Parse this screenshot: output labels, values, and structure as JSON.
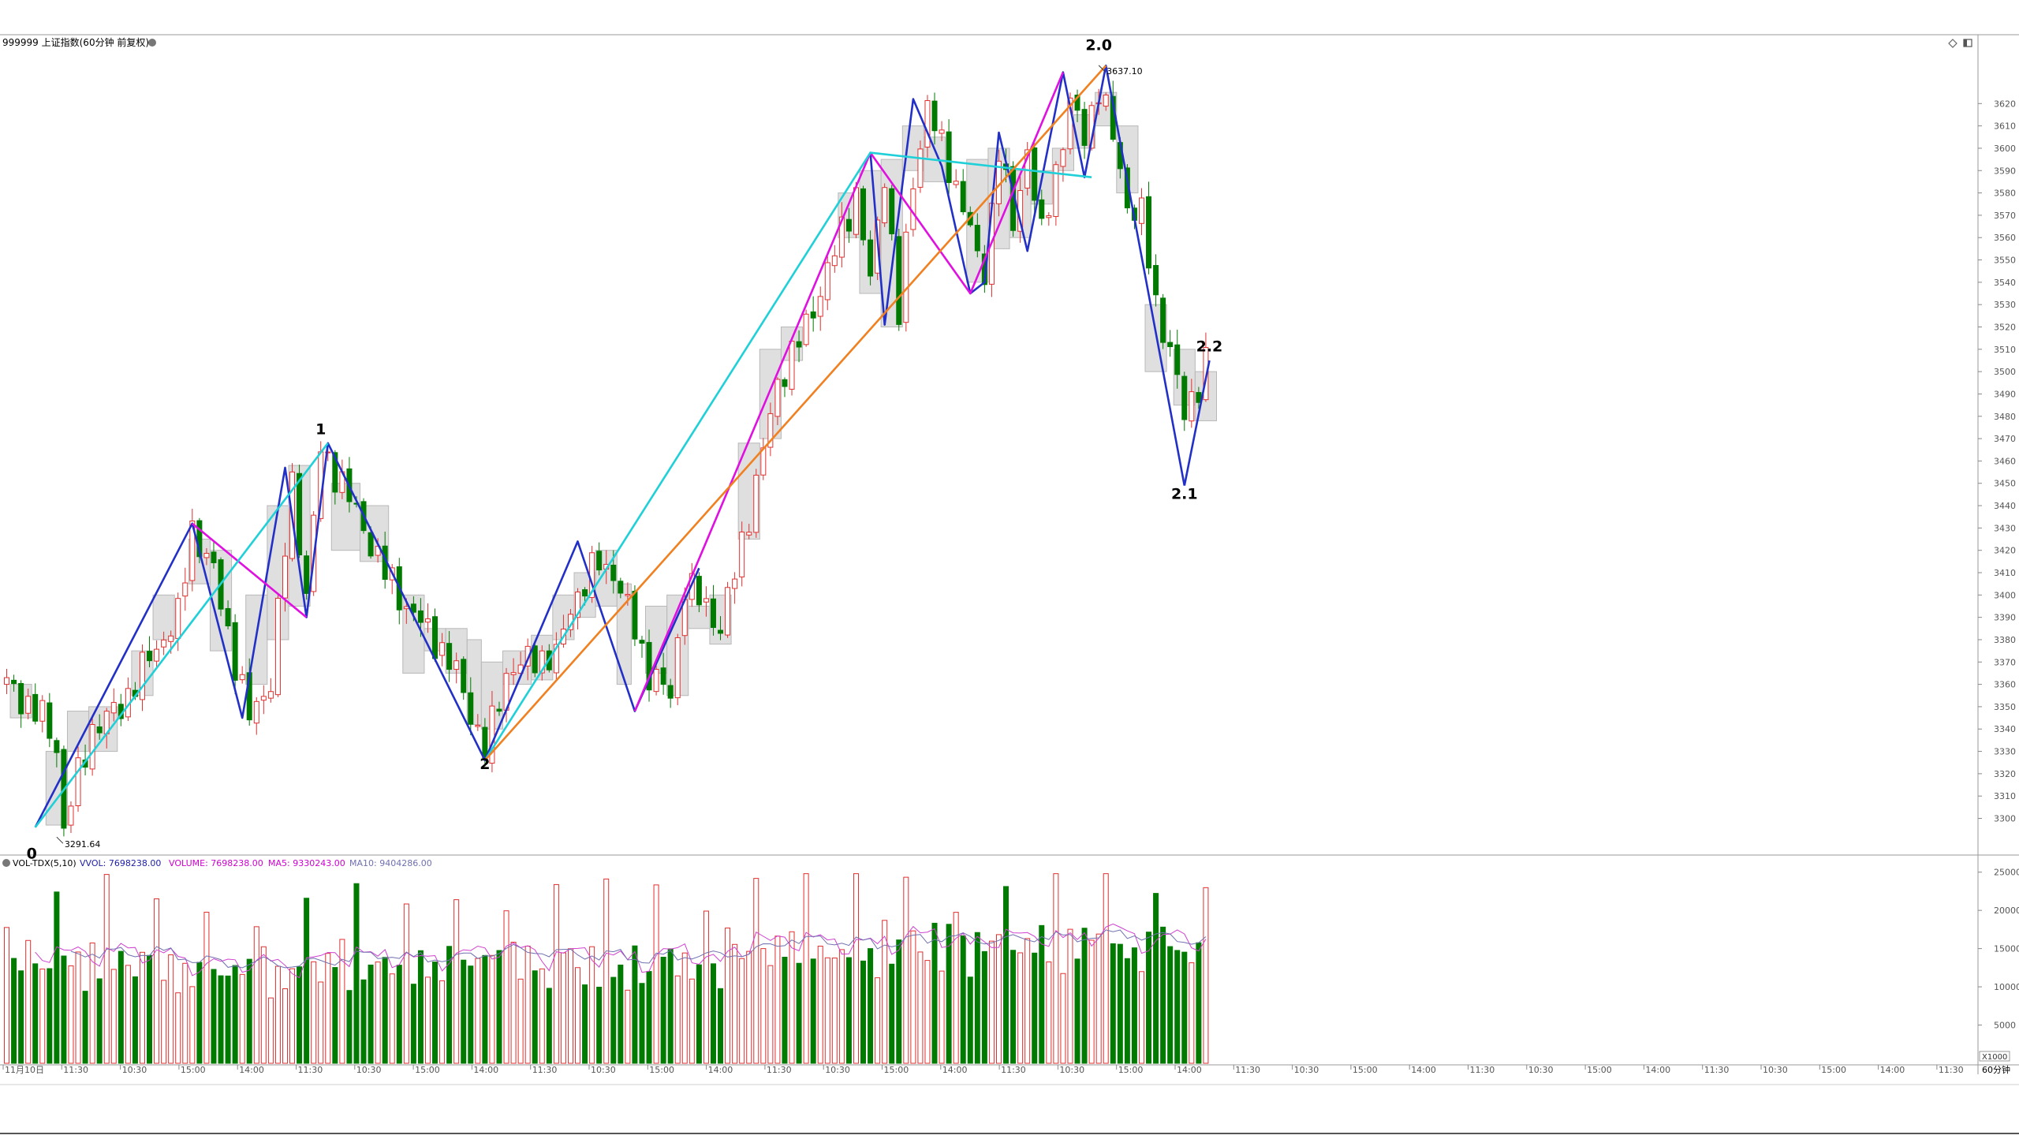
{
  "header": {
    "symbol_title": "999999 上证指数(60分钟 前复权)",
    "icons": [
      "diamond-icon",
      "window-icon"
    ]
  },
  "price_panel": {
    "low_label": "3291.64",
    "high_label": "3637.10",
    "y_ticks": [
      3300,
      3310,
      3320,
      3330,
      3340,
      3350,
      3360,
      3370,
      3380,
      3390,
      3400,
      3410,
      3420,
      3430,
      3440,
      3450,
      3460,
      3470,
      3480,
      3490,
      3500,
      3510,
      3520,
      3530,
      3540,
      3550,
      3560,
      3570,
      3580,
      3590,
      3600,
      3610,
      3620
    ],
    "wave_labels": [
      {
        "text": "0",
        "bar": 3.5,
        "price": 3282
      },
      {
        "text": "1",
        "bar": 44,
        "price": 3472
      },
      {
        "text": "2",
        "bar": 67,
        "price": 3322
      },
      {
        "text": "2.0",
        "bar": 153,
        "price": 3644
      },
      {
        "text": "2.1",
        "bar": 165,
        "price": 3443
      },
      {
        "text": "2.2",
        "bar": 168.5,
        "price": 3509
      }
    ]
  },
  "volume_panel": {
    "legend": {
      "name": "VOL-TDX(5,10)",
      "vvol": "VVOL: 7698238.00",
      "volume": "VOLUME: 7698238.00",
      "ma5": "MA5: 9330243.00",
      "ma10": "MA10: 9404286.00"
    },
    "y_ticks": [
      5000,
      10000,
      15000,
      20000,
      25000
    ],
    "unit_label": "X1000"
  },
  "x_axis": {
    "labels": [
      "11月10日",
      "11:30",
      "10:30",
      "15:00",
      "14:00",
      "11:30",
      "10:30",
      "15:00",
      "14:00",
      "11:30",
      "10:30",
      "15:00",
      "14:00",
      "11:30",
      "10:30",
      "15:00",
      "14:00",
      "11:30",
      "10:30",
      "15:00",
      "14:00",
      "11:30",
      "10:30",
      "15:00",
      "14:00",
      "11:30",
      "10:30",
      "15:00",
      "14:00",
      "11:30",
      "10:30",
      "15:00",
      "14:00",
      "11:30"
    ],
    "period_label": "60分钟"
  },
  "colors": {
    "up": "#e0302f",
    "down": "#007a00",
    "wave_blue": "#2230c8",
    "wave_magenta": "#e010e0",
    "wave_cyan": "#20d0d8",
    "wave_orange": "#f08020",
    "box_fill": "#d9d9d9",
    "box_stroke": "#b8b8b8",
    "ma5": "#d040d0",
    "ma10": "#7070b0",
    "vvol": "#1d1da8",
    "grid_text": "#555555"
  },
  "chart_data": {
    "type": "candlestick",
    "title": "999999 上证指数(60分钟 前复权)",
    "ylim": [
      3285,
      3648
    ],
    "low_marker": 3291.64,
    "high_marker": 3637.1,
    "anchors": [
      [
        0,
        3360
      ],
      [
        5,
        3345
      ],
      [
        7,
        3332
      ],
      [
        8,
        3295
      ],
      [
        9,
        3308
      ],
      [
        12,
        3340
      ],
      [
        16,
        3350
      ],
      [
        20,
        3372
      ],
      [
        24,
        3390
      ],
      [
        26,
        3430
      ],
      [
        29,
        3410
      ],
      [
        32,
        3370
      ],
      [
        34,
        3345
      ],
      [
        37,
        3362
      ],
      [
        40,
        3450
      ],
      [
        42,
        3400
      ],
      [
        44,
        3465
      ],
      [
        47,
        3450
      ],
      [
        50,
        3430
      ],
      [
        53,
        3410
      ],
      [
        56,
        3395
      ],
      [
        60,
        3380
      ],
      [
        63,
        3365
      ],
      [
        67,
        3330
      ],
      [
        70,
        3365
      ],
      [
        74,
        3372
      ],
      [
        77,
        3372
      ],
      [
        79,
        3395
      ],
      [
        83,
        3415
      ],
      [
        85,
        3410
      ],
      [
        88,
        3385
      ],
      [
        90,
        3365
      ],
      [
        93,
        3355
      ],
      [
        95,
        3405
      ],
      [
        98,
        3395
      ],
      [
        100,
        3385
      ],
      [
        102,
        3410
      ],
      [
        105,
        3450
      ],
      [
        108,
        3495
      ],
      [
        112,
        3520
      ],
      [
        115,
        3545
      ],
      [
        119,
        3580
      ],
      [
        121,
        3540
      ],
      [
        123,
        3590
      ],
      [
        125,
        3525
      ],
      [
        127,
        3585
      ],
      [
        129,
        3620
      ],
      [
        131,
        3600
      ],
      [
        134,
        3575
      ],
      [
        136,
        3550
      ],
      [
        137,
        3545
      ],
      [
        139,
        3600
      ],
      [
        141,
        3565
      ],
      [
        143,
        3600
      ],
      [
        145,
        3560
      ],
      [
        147,
        3590
      ],
      [
        149,
        3620
      ],
      [
        151,
        3605
      ],
      [
        153,
        3628
      ],
      [
        155,
        3605
      ],
      [
        157,
        3575
      ],
      [
        159,
        3570
      ],
      [
        161,
        3530
      ],
      [
        163,
        3510
      ],
      [
        165,
        3480
      ],
      [
        167,
        3495
      ],
      [
        168,
        3505
      ]
    ],
    "bar_count": 169,
    "volume_ylim": [
      0,
      26000
    ],
    "volume_avg": 9404286,
    "boxes": [
      [
        1,
        4,
        3345,
        3360
      ],
      [
        6,
        9,
        3297,
        3330
      ],
      [
        9,
        12,
        3330,
        3348
      ],
      [
        12,
        16,
        3330,
        3350
      ],
      [
        18,
        21,
        3355,
        3375
      ],
      [
        21,
        24,
        3380,
        3400
      ],
      [
        26,
        29,
        3405,
        3425
      ],
      [
        29,
        32,
        3375,
        3420
      ],
      [
        34,
        37,
        3360,
        3400
      ],
      [
        37,
        40,
        3380,
        3440
      ],
      [
        40,
        43,
        3395,
        3458
      ],
      [
        46,
        50,
        3420,
        3450
      ],
      [
        50,
        54,
        3415,
        3440
      ],
      [
        56,
        59,
        3365,
        3400
      ],
      [
        59,
        62,
        3375,
        3385
      ],
      [
        62,
        65,
        3365,
        3385
      ],
      [
        65,
        67,
        3342,
        3380
      ],
      [
        67,
        70,
        3340,
        3370
      ],
      [
        70,
        74,
        3360,
        3375
      ],
      [
        74,
        77,
        3362,
        3382
      ],
      [
        77,
        80,
        3380,
        3400
      ],
      [
        80,
        83,
        3390,
        3410
      ],
      [
        83,
        86,
        3395,
        3420
      ],
      [
        86,
        88,
        3360,
        3405
      ],
      [
        90,
        93,
        3365,
        3395
      ],
      [
        93,
        96,
        3355,
        3400
      ],
      [
        96,
        99,
        3385,
        3395
      ],
      [
        99,
        102,
        3378,
        3400
      ],
      [
        103,
        106,
        3425,
        3468
      ],
      [
        106,
        109,
        3470,
        3510
      ],
      [
        109,
        112,
        3505,
        3520
      ],
      [
        117,
        120,
        3560,
        3580
      ],
      [
        120,
        123,
        3535,
        3590
      ],
      [
        123,
        126,
        3520,
        3595
      ],
      [
        126,
        129,
        3590,
        3610
      ],
      [
        129,
        132,
        3585,
        3605
      ],
      [
        135,
        138,
        3540,
        3595
      ],
      [
        138,
        141,
        3555,
        3600
      ],
      [
        141,
        144,
        3560,
        3590
      ],
      [
        144,
        147,
        3575,
        3590
      ],
      [
        147,
        150,
        3590,
        3600
      ],
      [
        150,
        153,
        3600,
        3615
      ],
      [
        153,
        156,
        3610,
        3625
      ],
      [
        156,
        159,
        3580,
        3610
      ],
      [
        160,
        163,
        3500,
        3530
      ],
      [
        164,
        167,
        3485,
        3510
      ],
      [
        167,
        170,
        3478,
        3500
      ]
    ],
    "wave_lines": [
      {
        "color": "wave_blue",
        "points": [
          [
            4,
            3296
          ],
          [
            26,
            3432
          ],
          [
            33,
            3345
          ],
          [
            39,
            3457
          ],
          [
            42,
            3390
          ],
          [
            45,
            3468
          ],
          [
            67,
            3326
          ],
          [
            80,
            3424
          ],
          [
            88,
            3348
          ],
          [
            97,
            3412
          ]
        ]
      },
      {
        "color": "wave_blue",
        "points": [
          [
            121,
            3598
          ],
          [
            123,
            3521
          ],
          [
            127,
            3622
          ],
          [
            131,
            3592
          ],
          [
            135,
            3535
          ],
          [
            137,
            3540
          ],
          [
            139,
            3607
          ],
          [
            143,
            3554
          ],
          [
            148,
            3634
          ],
          [
            151,
            3587
          ],
          [
            154,
            3637
          ],
          [
            165,
            3449
          ]
        ]
      },
      {
        "color": "wave_blue",
        "points": [
          [
            165,
            3449
          ],
          [
            168.5,
            3505
          ]
        ]
      },
      {
        "color": "wave_magenta",
        "points": [
          [
            26,
            3432
          ],
          [
            42,
            3390
          ]
        ]
      },
      {
        "color": "wave_magenta",
        "points": [
          [
            88,
            3348
          ],
          [
            121,
            3598
          ],
          [
            135,
            3535
          ],
          [
            148,
            3634
          ]
        ]
      },
      {
        "color": "wave_cyan",
        "points": [
          [
            4,
            3296
          ],
          [
            45,
            3468
          ]
        ]
      },
      {
        "color": "wave_cyan",
        "points": [
          [
            67,
            3326
          ],
          [
            121,
            3598
          ],
          [
            152,
            3587
          ]
        ]
      },
      {
        "color": "wave_orange",
        "points": [
          [
            67,
            3326
          ],
          [
            154,
            3637
          ]
        ]
      }
    ]
  }
}
